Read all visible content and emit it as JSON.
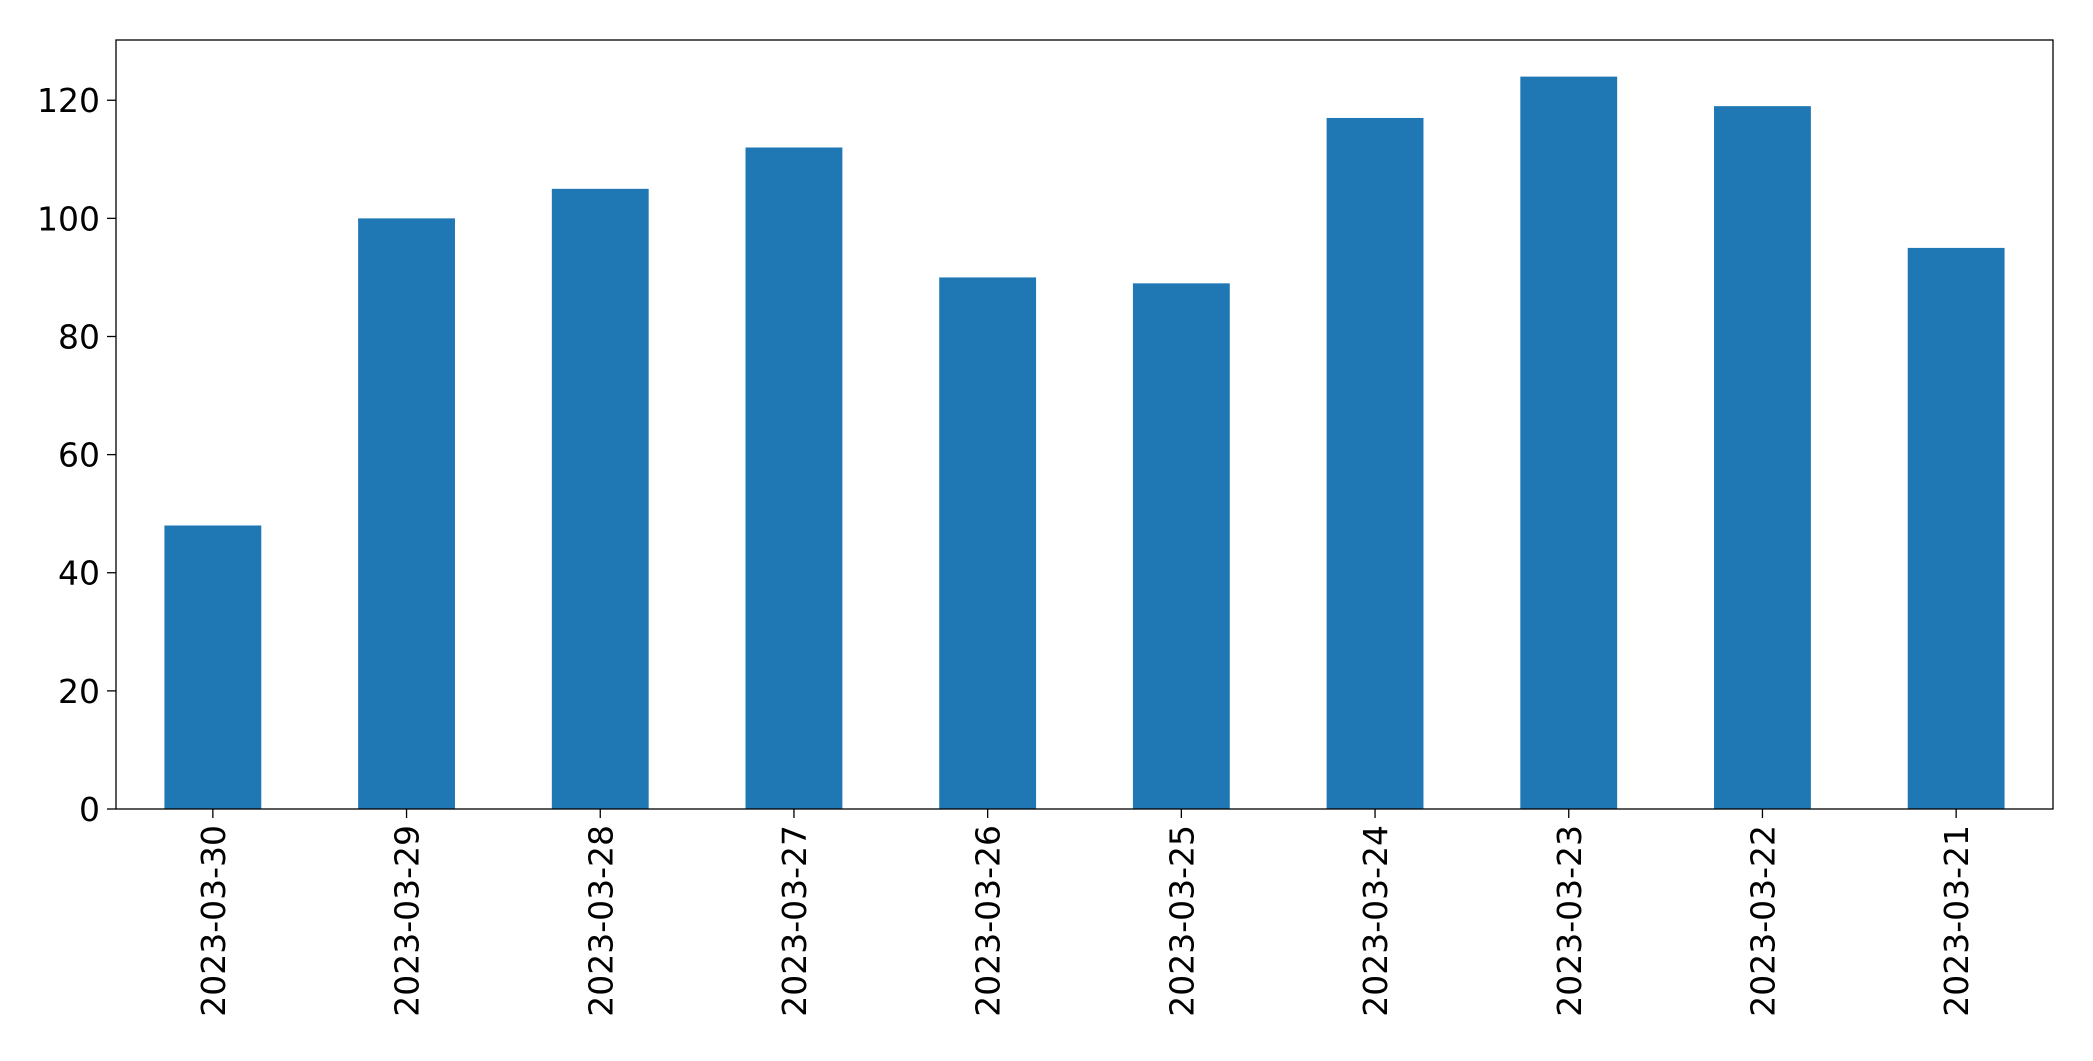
{
  "chart_data": {
    "type": "bar",
    "categories": [
      "2023-03-30",
      "2023-03-29",
      "2023-03-28",
      "2023-03-27",
      "2023-03-26",
      "2023-03-25",
      "2023-03-24",
      "2023-03-23",
      "2023-03-22",
      "2023-03-21"
    ],
    "values": [
      48,
      100,
      105,
      112,
      90,
      89,
      117,
      124,
      119,
      95
    ],
    "color": "#1f77b4",
    "ylim": [
      0,
      130.2
    ],
    "yticks": [
      0,
      20,
      40,
      60,
      80,
      100,
      120
    ],
    "grid": false
  }
}
